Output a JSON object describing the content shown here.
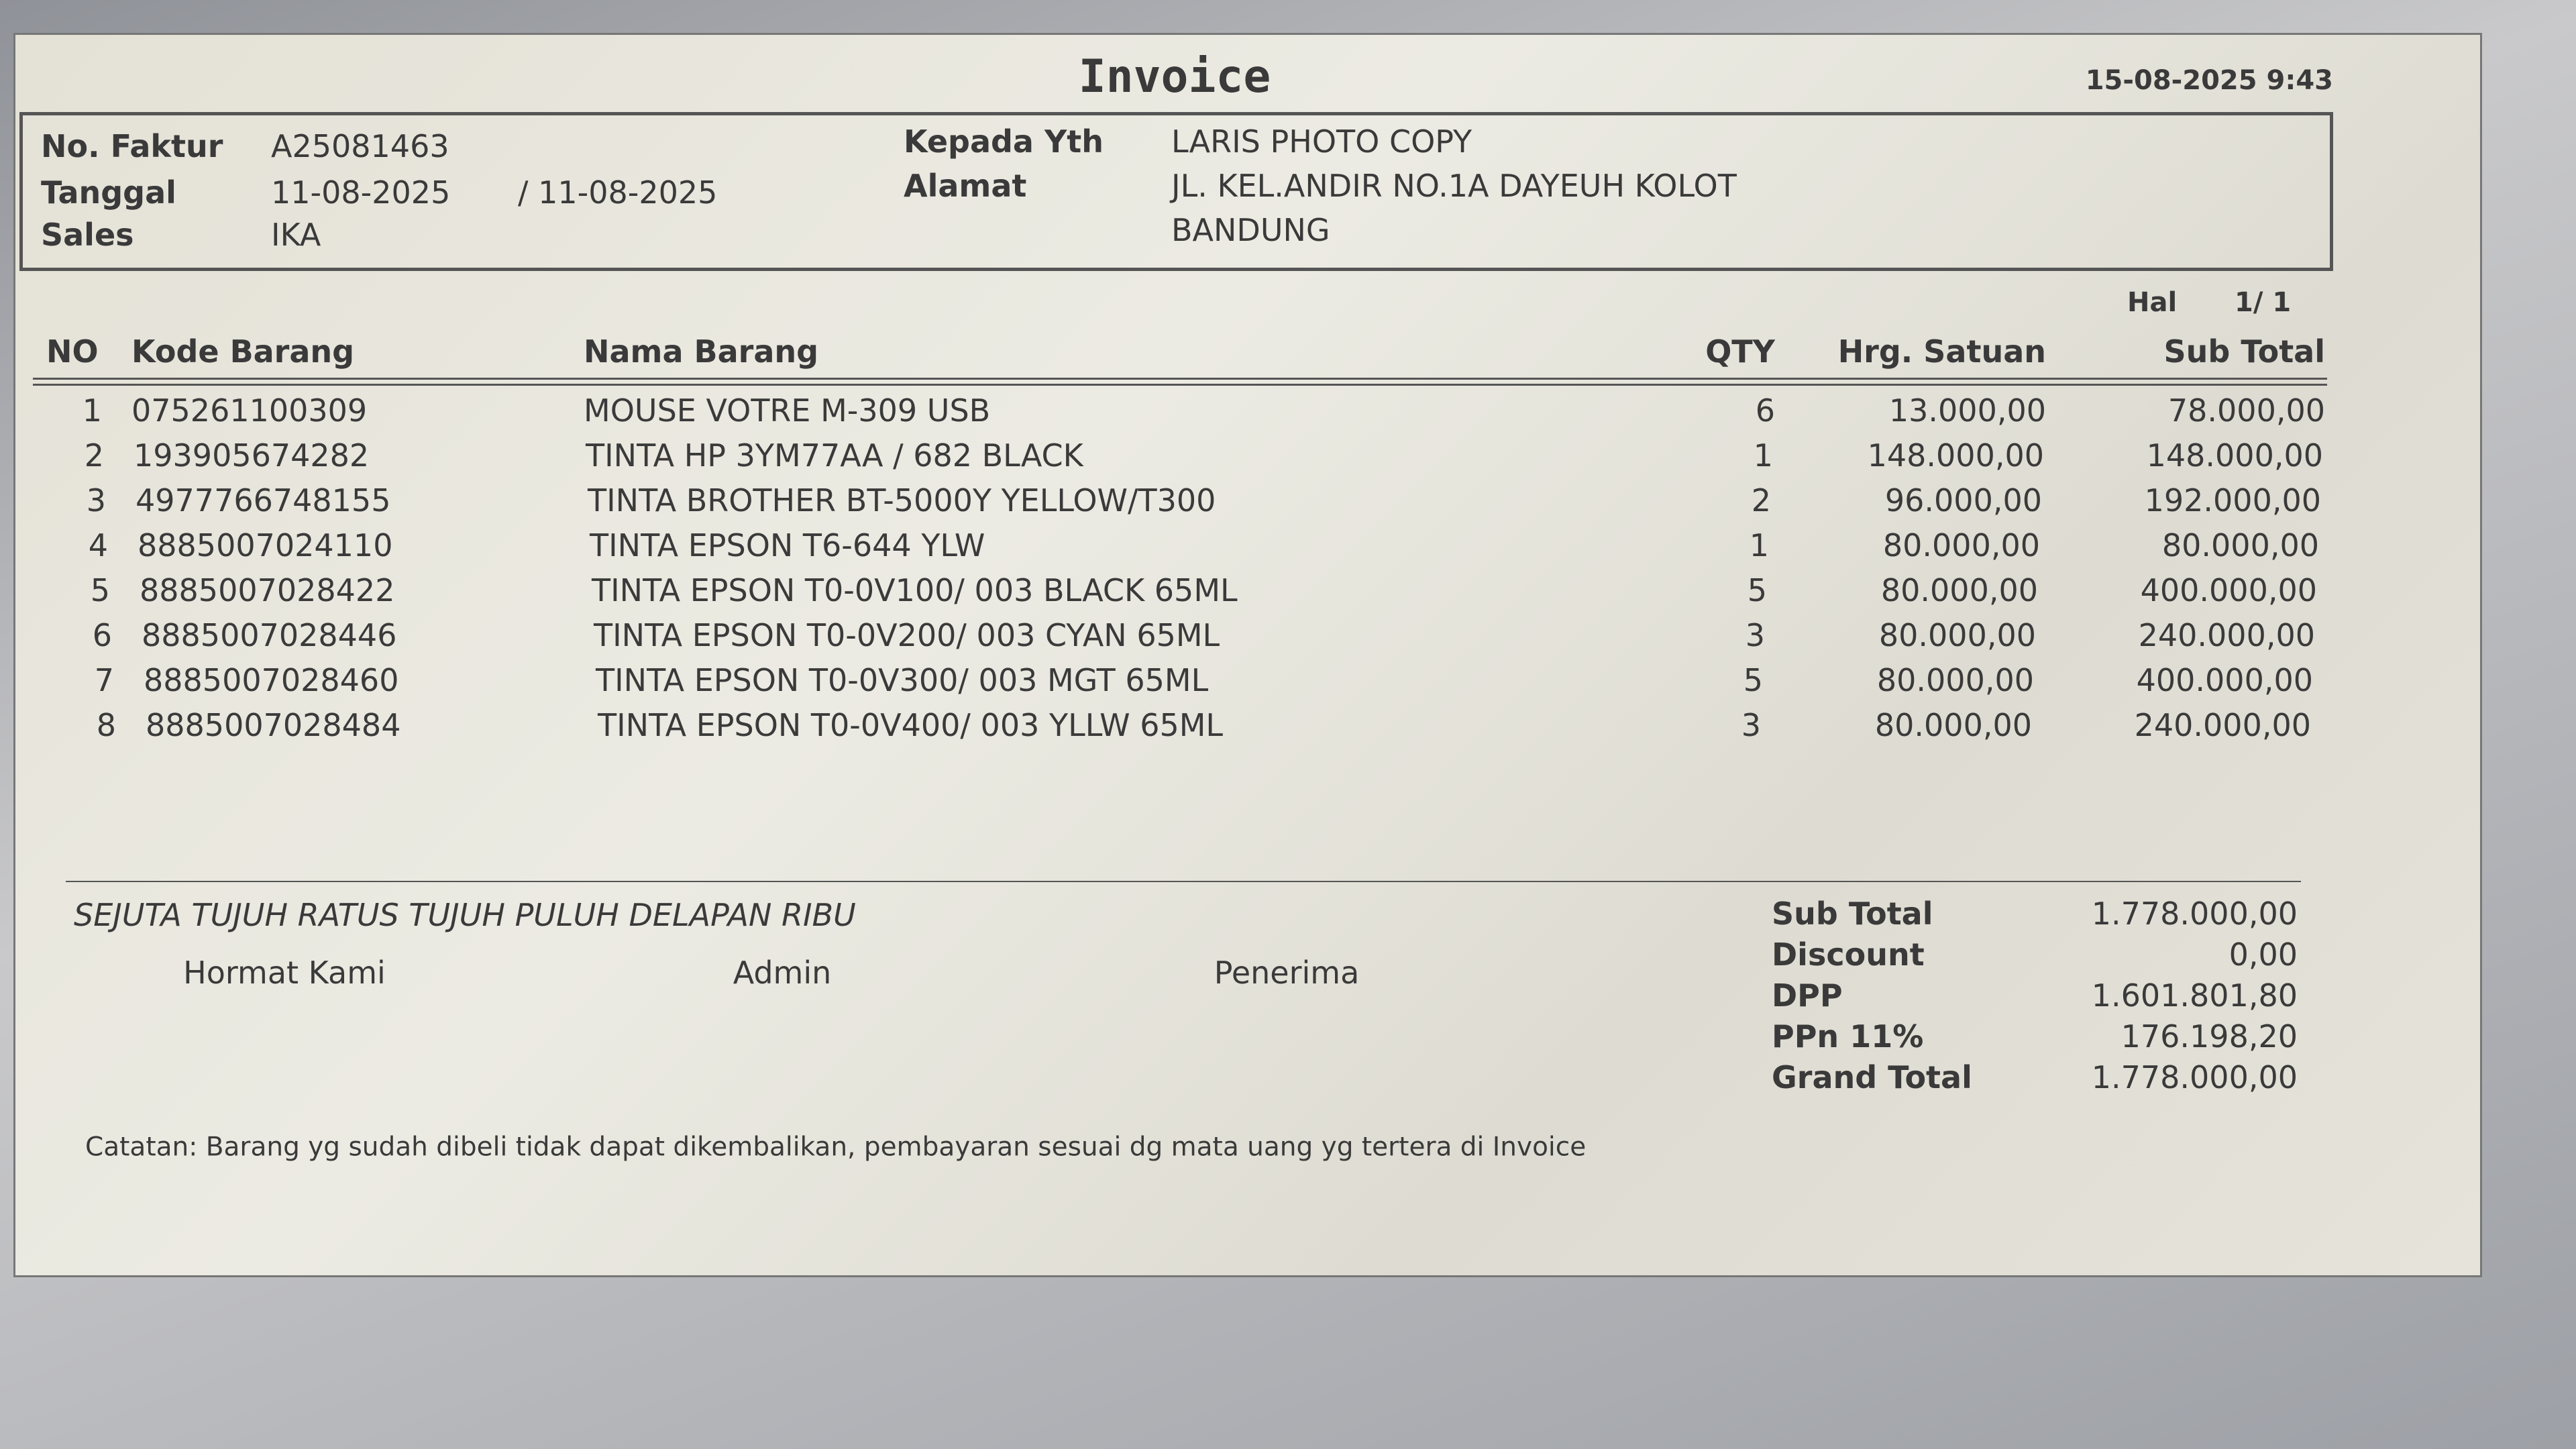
{
  "header": {
    "title": "Invoice",
    "datetime": "15-08-2025 9:43"
  },
  "info": {
    "left": [
      {
        "label": "No. Faktur",
        "value": "A25081463"
      },
      {
        "label": "Tanggal",
        "value": "11-08-2025",
        "value2": "/ 11-08-2025"
      },
      {
        "label": "Sales",
        "value": "IKA"
      }
    ],
    "right": [
      {
        "label": "Kepada Yth",
        "value": "LARIS PHOTO COPY"
      },
      {
        "label": "Alamat",
        "lines": [
          "JL. KEL.ANDIR NO.1A DAYEUH KOLOT",
          "BANDUNG"
        ]
      }
    ]
  },
  "page": {
    "label": "Hal",
    "value": "1/ 1"
  },
  "table": {
    "columns": [
      "NO",
      "Kode Barang",
      "Nama Barang",
      "QTY",
      "Hrg. Satuan",
      "Sub Total"
    ],
    "rows": [
      [
        "1",
        "075261100309",
        "MOUSE VOTRE M-309 USB",
        "6",
        "13.000,00",
        "78.000,00"
      ],
      [
        "2",
        "193905674282",
        "TINTA HP 3YM77AA / 682 BLACK",
        "1",
        "148.000,00",
        "148.000,00"
      ],
      [
        "3",
        "4977766748155",
        "TINTA BROTHER BT-5000Y YELLOW/T300",
        "2",
        "96.000,00",
        "192.000,00"
      ],
      [
        "4",
        "8885007024110",
        "TINTA EPSON T6-644 YLW",
        "1",
        "80.000,00",
        "80.000,00"
      ],
      [
        "5",
        "8885007028422",
        "TINTA EPSON T0-0V100/ 003 BLACK 65ML",
        "5",
        "80.000,00",
        "400.000,00"
      ],
      [
        "6",
        "8885007028446",
        "TINTA EPSON T0-0V200/ 003 CYAN 65ML",
        "3",
        "80.000,00",
        "240.000,00"
      ],
      [
        "7",
        "8885007028460",
        "TINTA EPSON T0-0V300/ 003 MGT 65ML",
        "5",
        "80.000,00",
        "400.000,00"
      ],
      [
        "8",
        "8885007028484",
        "TINTA EPSON T0-0V400/ 003 YLLW 65ML",
        "3",
        "80.000,00",
        "240.000,00"
      ]
    ]
  },
  "amount_in_words": "SEJUTA TUJUH RATUS TUJUH PULUH DELAPAN RIBU",
  "signatures": [
    "Hormat Kami",
    "Admin",
    "Penerima"
  ],
  "totals": [
    {
      "label": "Sub Total",
      "value": "1.778.000,00"
    },
    {
      "label": "Discount",
      "value": "0,00"
    },
    {
      "label": "DPP",
      "value": "1.601.801,80"
    },
    {
      "label": "PPn 11%",
      "value": "176.198,20"
    },
    {
      "label": "Grand Total",
      "value": "1.778.000,00"
    }
  ],
  "note": "Catatan: Barang yg sudah dibeli tidak dapat dikembalikan, pembayaran sesuai dg mata uang yg tertera di Invoice"
}
